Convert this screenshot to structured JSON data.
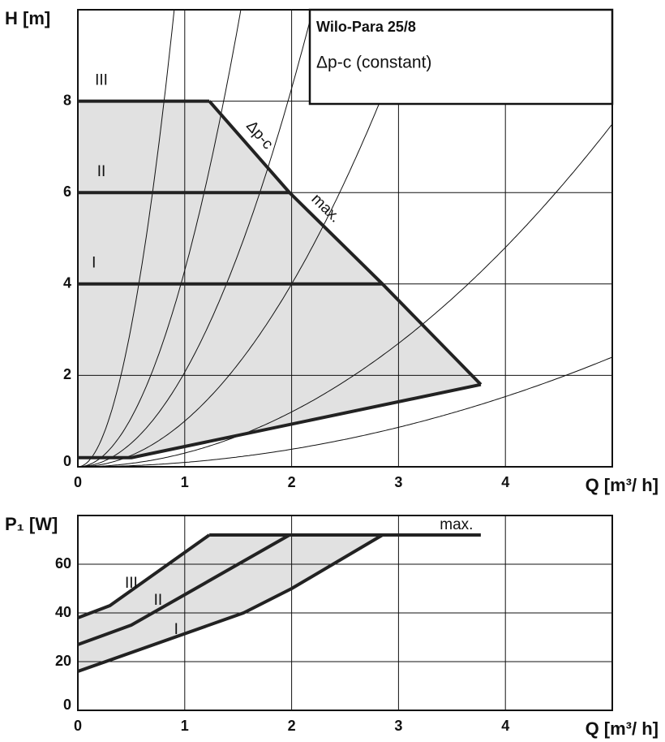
{
  "chart_data": [
    {
      "type": "line",
      "title": "Wilo-Para  25/8",
      "subtitle": "Δp-c (constant)",
      "x_label": "Q [m³/ h]",
      "y_label": "H [m]",
      "annotation": "Δp-c",
      "xlim": [
        0,
        5
      ],
      "ylim": [
        0,
        10
      ],
      "xticks": [
        0,
        1,
        2,
        3,
        4
      ],
      "yticks": [
        0,
        2,
        4,
        6,
        8
      ],
      "grid": true,
      "color": "#222222",
      "fill": "#e1e1e1",
      "series": [
        {
          "name": "III",
          "x": [
            0,
            1.23
          ],
          "values": [
            8,
            8
          ]
        },
        {
          "name": "II",
          "x": [
            0,
            1.98
          ],
          "values": [
            6,
            6
          ]
        },
        {
          "name": "I",
          "x": [
            0,
            2.85
          ],
          "values": [
            4,
            4
          ]
        },
        {
          "name": "max.",
          "x": [
            1.23,
            1.98,
            2.85,
            3.77
          ],
          "values": [
            8,
            6,
            4,
            1.8
          ]
        }
      ],
      "lower_limit": {
        "x": [
          0,
          0.5,
          3.77
        ],
        "values": [
          0.2,
          0.2,
          1.8
        ]
      },
      "system_curves": [
        12.3,
        4.3,
        2.07,
        1.0,
        0.3,
        0.096
      ]
    },
    {
      "type": "line",
      "x_label": "Q [m³/ h]",
      "y_label": "P₁ [W]",
      "xlim": [
        0,
        5
      ],
      "ylim": [
        0,
        80
      ],
      "xticks": [
        0,
        1,
        2,
        3,
        4
      ],
      "yticks": [
        0,
        20,
        40,
        60
      ],
      "grid": true,
      "color": "#222222",
      "fill": "#e1e1e1",
      "series": [
        {
          "name": "III",
          "x": [
            0,
            0.3,
            1.23
          ],
          "values": [
            38,
            43,
            72
          ]
        },
        {
          "name": "II",
          "x": [
            0,
            0.5,
            1.98
          ],
          "values": [
            27,
            35,
            72
          ]
        },
        {
          "name": "I",
          "x": [
            0,
            1.55,
            2.0,
            2.85
          ],
          "values": [
            16,
            40,
            50,
            72
          ]
        },
        {
          "name": "max.",
          "x": [
            1.23,
            3.77
          ],
          "values": [
            72,
            72
          ]
        }
      ]
    }
  ]
}
